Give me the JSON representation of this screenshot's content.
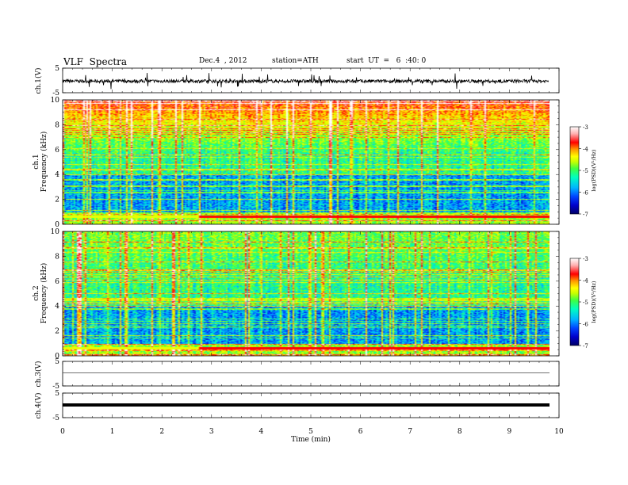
{
  "header": {
    "title": "VLF  Spectra",
    "date": "Dec.4  , 2012",
    "station": "station=ATH",
    "start": "start  UT  =   6  :40: 0"
  },
  "chart_data": [
    {
      "type": "line",
      "panel": "ch1-waveform",
      "ylabel": "ch.1(V)",
      "ylim": [
        -5,
        5
      ],
      "yticks": [
        "5",
        "-5"
      ],
      "x_range_min": [
        0,
        9.8
      ],
      "description_level": -0.3,
      "color": "#000000"
    },
    {
      "type": "heatmap",
      "panel": "ch1-spectrogram",
      "ylabel": [
        "ch.1",
        "Frequency  (kHz)"
      ],
      "ylim": [
        0,
        10
      ],
      "yticks": [
        "0",
        "2",
        "4",
        "6",
        "8",
        "10"
      ],
      "colorbar": {
        "label": "log(PSD)(V²/Hz)",
        "range": [
          -7,
          -3
        ],
        "ticks": [
          "-3",
          "-4",
          "-5",
          "-6",
          "-7"
        ]
      }
    },
    {
      "type": "heatmap",
      "panel": "ch2-spectrogram",
      "ylabel": [
        "ch.2",
        "Frequency  (kHz)"
      ],
      "ylim": [
        0,
        10
      ],
      "yticks": [
        "0",
        "2",
        "4",
        "6",
        "8",
        "10"
      ],
      "colorbar": {
        "label": "log(PSD)(V²/Hz)",
        "range": [
          -7,
          -3
        ],
        "ticks": [
          "-3",
          "-4",
          "-5",
          "-6",
          "-7"
        ]
      }
    },
    {
      "type": "line",
      "panel": "ch3-waveform",
      "ylabel": "ch.3(V)",
      "ylim": [
        -5,
        5
      ],
      "yticks": [
        "5",
        "-5"
      ],
      "level": -1.5
    },
    {
      "type": "line",
      "panel": "ch4-waveform",
      "ylabel": "ch.4(V)",
      "ylim": [
        -5,
        5
      ],
      "yticks": [
        "5",
        "-5"
      ],
      "level": -0.6
    }
  ],
  "xaxis": {
    "label": "Time  (min)",
    "range": [
      0,
      10
    ],
    "ticks": [
      "0",
      "1",
      "2",
      "3",
      "4",
      "5",
      "6",
      "7",
      "8",
      "9",
      "10"
    ]
  },
  "colors": {
    "colormap": [
      "#000066",
      "#0000cc",
      "#0044ff",
      "#00b4ff",
      "#00ffc0",
      "#40ff40",
      "#c8ff00",
      "#ffff00",
      "#ff9900",
      "#ff0000",
      "#ffc0c0",
      "#ffffff"
    ]
  }
}
